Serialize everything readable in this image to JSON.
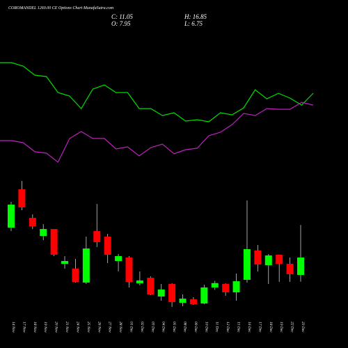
{
  "chart_data": {
    "type": "candlestick",
    "title": "COROMANDEL 1260.00 CE Options Chart MunafaSutra.com",
    "summary": {
      "close": "C: 11.05",
      "high": "H: 16.85",
      "open": "O: 7.95",
      "low": "L: 6.75"
    },
    "up_color": "#00ff00",
    "down_color": "#ff0000",
    "categories": [
      "14 Nov",
      "17 Nov",
      "18 Nov",
      "19 Nov",
      "20 Nov",
      "21 Nov",
      "24 Nov",
      "25 Nov",
      "26 Nov",
      "27 Nov",
      "28 Nov",
      "01 Dec",
      "02 Dec",
      "03 Dec",
      "04 Dec",
      "05 Dec",
      "08 Dec",
      "09 Dec",
      "10 Dec",
      "11 Dec",
      "12 Dec",
      "15 Dec",
      "16 Dec",
      "17 Dec",
      "18 Dec",
      "19 Dec",
      "22 Dec",
      "23 Dec"
    ],
    "open": [
      16.38,
      23.2,
      18.12,
      14.89,
      16.13,
      9.93,
      9.07,
      6.59,
      15.76,
      14.77,
      10.43,
      11.05,
      6.46,
      7.45,
      4.11,
      6.34,
      2.99,
      3.61,
      2.87,
      5.72,
      6.34,
      4.85,
      7.08,
      12.29,
      9.69,
      11.55,
      9.93,
      7.95
    ],
    "high": [
      20.97,
      24.69,
      18.74,
      17.0,
      16.13,
      11.3,
      10.8,
      14.77,
      20.6,
      15.27,
      11.67,
      11.3,
      8.57,
      7.7,
      6.34,
      6.46,
      4.48,
      3.98,
      6.21,
      6.9,
      6.46,
      8.2,
      21.22,
      13.28,
      11.67,
      11.55,
      11.05,
      16.85
    ],
    "low": [
      15.76,
      19.48,
      16.13,
      14.15,
      11.3,
      9.07,
      6.59,
      6.34,
      12.91,
      10.06,
      8.57,
      5.72,
      6.09,
      4.35,
      3.36,
      2.25,
      2.37,
      2.62,
      2.74,
      5.3,
      4.23,
      3.36,
      6.59,
      8.57,
      6.34,
      6.71,
      6.71,
      6.75
    ],
    "close": [
      20.47,
      19.98,
      16.63,
      16.13,
      11.55,
      10.43,
      6.71,
      12.66,
      13.78,
      11.55,
      11.3,
      6.71,
      6.96,
      4.48,
      5.35,
      3.11,
      3.73,
      2.74,
      5.72,
      6.5,
      4.85,
      6.83,
      12.54,
      9.81,
      11.42,
      9.93,
      8.07,
      11.05
    ],
    "lines": [
      {
        "color": "#00e000",
        "values": [
          160,
          160,
          155,
          142,
          140,
          117,
          112,
          94,
          122,
          128,
          117,
          117,
          94,
          94,
          84,
          88,
          76,
          78,
          75,
          88,
          85,
          95,
          121,
          108,
          116,
          109,
          99,
          116
        ]
      },
      {
        "color": "#c020c0",
        "values": [
          48,
          48,
          45,
          32,
          30,
          17,
          51,
          61,
          51,
          51,
          36,
          39,
          26,
          38,
          43,
          29,
          35,
          37,
          55,
          60,
          71,
          87,
          84,
          94,
          93,
          93,
          103,
          99
        ]
      }
    ]
  }
}
